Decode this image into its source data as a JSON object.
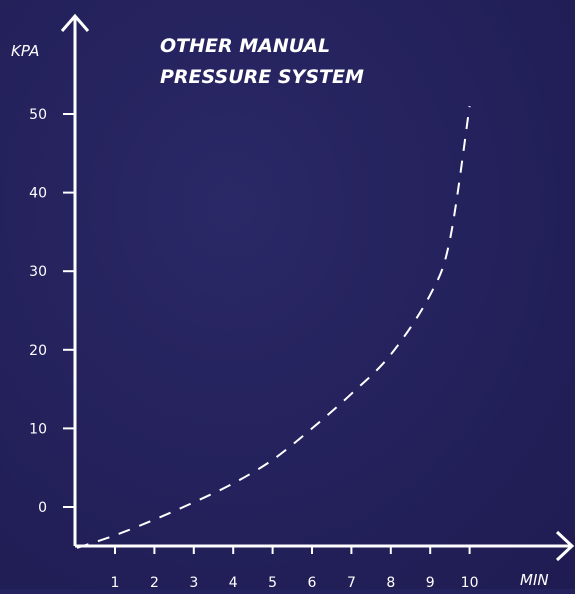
{
  "chart_data": {
    "type": "line",
    "title_lines": [
      "OTHER MANUAL",
      "PRESSURE SYSTEM"
    ],
    "xlabel": "MIN",
    "ylabel": "KPA",
    "x_ticks": [
      "1",
      "2",
      "3",
      "4",
      "5",
      "6",
      "7",
      "8",
      "9",
      "10"
    ],
    "y_ticks": [
      "0",
      "10",
      "20",
      "30",
      "40",
      "50"
    ],
    "xlim": [
      0,
      10
    ],
    "ylim": [
      0,
      50
    ],
    "grid": false,
    "series": [
      {
        "style": "dashed",
        "color": "#ffffff",
        "x": [
          0,
          1,
          2,
          3,
          4,
          5,
          6,
          7,
          8,
          9,
          9.5,
          10
        ],
        "y": [
          -5.2,
          -3.6,
          -1.6,
          0.6,
          3,
          6,
          10,
          14.4,
          19.4,
          27,
          34,
          51
        ]
      }
    ]
  },
  "colors": {
    "background": "#24225c",
    "axis": "#ffffff",
    "line": "#ffffff"
  }
}
